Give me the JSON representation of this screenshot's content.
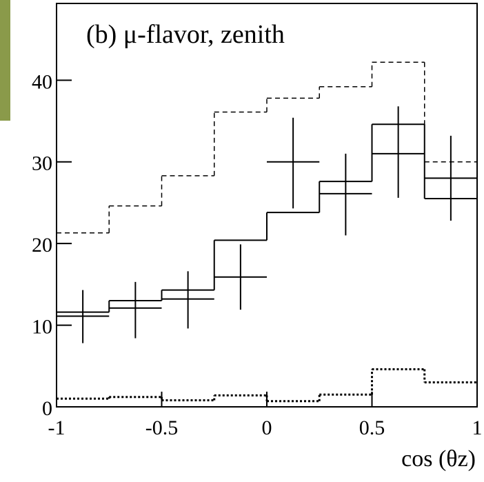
{
  "chart_data": {
    "type": "histogram",
    "annotation": "(b)  μ-flavor,  zenith",
    "xlabel": "cos (θz)",
    "bins": [
      -1,
      -0.75,
      -0.5,
      -0.25,
      0,
      0.25,
      0.5,
      0.75,
      1
    ],
    "series": [
      {
        "style": "dashed",
        "color": "#000000",
        "values": [
          21.3,
          24.6,
          28.3,
          36.1,
          37.8,
          39.2,
          42.2,
          30.0
        ]
      },
      {
        "style": "solid",
        "color": "#000000",
        "values": [
          11.6,
          13.0,
          14.3,
          20.4,
          23.8,
          27.6,
          34.6,
          25.5
        ]
      },
      {
        "style": "dotted",
        "color": "#000000",
        "values": [
          1.0,
          1.2,
          0.8,
          1.4,
          0.7,
          1.5,
          4.6,
          3.0
        ]
      }
    ],
    "points": {
      "color": "#000000",
      "values": [
        11.1,
        12.1,
        13.2,
        15.9,
        30.0,
        26.1,
        31.0,
        28.0
      ],
      "lower": [
        7.8,
        8.4,
        9.6,
        11.9,
        24.3,
        21.0,
        25.6,
        22.8
      ],
      "upper": [
        14.3,
        15.3,
        16.6,
        19.9,
        35.4,
        31.0,
        36.8,
        33.2
      ]
    },
    "xlim": [
      -1,
      1
    ],
    "ylim": [
      0,
      49.4
    ],
    "xticks": [
      -1,
      -0.5,
      0,
      0.5,
      1
    ],
    "yticks": [
      0,
      10,
      20,
      30,
      40
    ]
  }
}
